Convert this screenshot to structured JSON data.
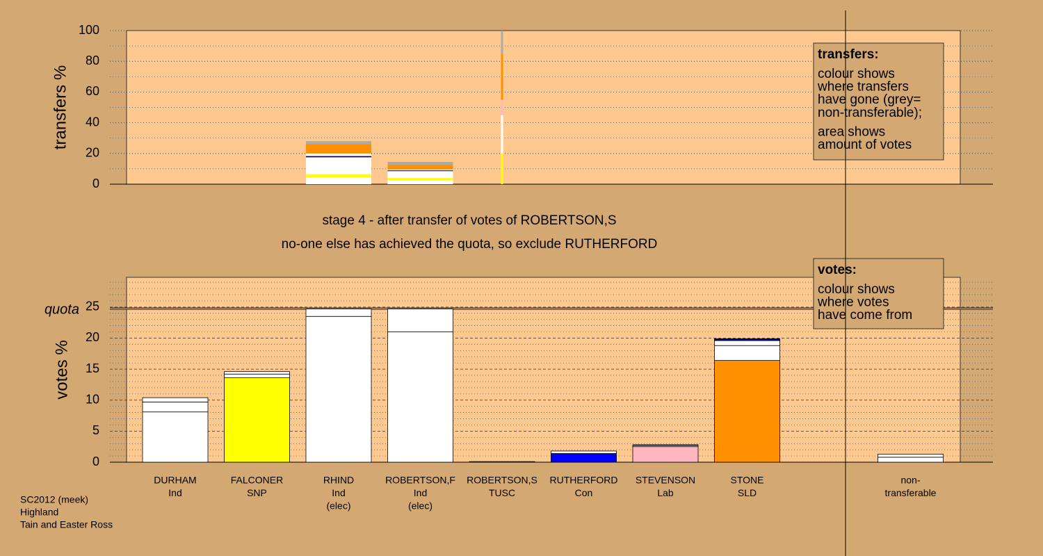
{
  "chart_data": [
    {
      "type": "bar",
      "stacked": true,
      "ylabel": "transfers %",
      "ylim": [
        0,
        100
      ],
      "yticks": [
        0,
        20,
        40,
        60,
        80,
        100
      ],
      "yminor": [
        10,
        30,
        50,
        70,
        90
      ],
      "stacks": [
        null,
        null,
        {
          "segments": [
            {
              "value": 4.5,
              "color": "#ffffff"
            },
            {
              "value": 2,
              "color": "#ffff00"
            },
            {
              "value": 11,
              "color": "#ffffff"
            },
            {
              "value": 0.8,
              "color": "#000080"
            },
            {
              "value": 1.7,
              "color": "#ffffff"
            },
            {
              "value": 6,
              "color": "#ff9000"
            },
            {
              "value": 2,
              "color": "#aaaaaa"
            }
          ]
        },
        {
          "segments": [
            {
              "value": 2.5,
              "color": "#ffffff"
            },
            {
              "value": 1.5,
              "color": "#ffff00"
            },
            {
              "value": 4.5,
              "color": "#ffffff"
            },
            {
              "value": 0.5,
              "color": "#000080"
            },
            {
              "value": 0.5,
              "color": "#ffffff"
            },
            {
              "value": 3,
              "color": "#ff9000"
            },
            {
              "value": 2,
              "color": "#aaaaaa"
            }
          ]
        },
        {
          "segments": [
            {
              "value": 20,
              "color": "#ffff00"
            },
            {
              "value": 25,
              "color": "#ffffff"
            },
            {
              "value": 10,
              "color": "#ffb6c1"
            },
            {
              "value": 30,
              "color": "#ff9000"
            },
            {
              "value": 15,
              "color": "#aaaaaa"
            }
          ]
        },
        null,
        null,
        null,
        null,
        null
      ],
      "note": {
        "title": "transfers:",
        "lines": [
          "colour shows",
          "where transfers",
          "have gone (grey=",
          "non-transferable);",
          "area shows",
          "amount of votes"
        ]
      }
    },
    {
      "type": "bar",
      "stacked": true,
      "ylabel": "votes %",
      "ylim": [
        0,
        29.8
      ],
      "yticks": [
        0,
        5,
        10,
        15,
        20,
        25
      ],
      "yminor": [
        1,
        2,
        3,
        4,
        6,
        7,
        8,
        9,
        11,
        12,
        13,
        14,
        16,
        17,
        18,
        19,
        21,
        22,
        23,
        24,
        26,
        27,
        28,
        29
      ],
      "quota": {
        "label": "quota",
        "value": 24.75
      },
      "categories": [
        [
          "DURHAM",
          "Ind"
        ],
        [
          "FALCONER",
          "SNP"
        ],
        [
          "RHIND",
          "Ind",
          "(elec)"
        ],
        [
          "ROBERTSON,F",
          "Ind",
          "(elec)"
        ],
        [
          "ROBERTSON,S",
          "TUSC"
        ],
        [
          "RUTHERFORD",
          "Con"
        ],
        [
          "STEVENSON",
          "Lab"
        ],
        [
          "STONE",
          "SLD"
        ],
        null,
        [
          "non-",
          "transferable"
        ]
      ],
      "stacks": [
        {
          "segments": [
            {
              "value": 8.1,
              "color": "#ffffff"
            },
            {
              "value": 1.6,
              "color": "#ffffff"
            },
            {
              "value": 0.7,
              "color": "#ffffff"
            }
          ]
        },
        {
          "segments": [
            {
              "value": 13.6,
              "color": "#ffff00"
            },
            {
              "value": 0.6,
              "color": "#ffffff"
            },
            {
              "value": 0.4,
              "color": "#ffffff"
            }
          ]
        },
        {
          "segments": [
            {
              "value": 23.5,
              "color": "#ffffff"
            },
            {
              "value": 1.2,
              "color": "#ffffff"
            }
          ]
        },
        {
          "segments": [
            {
              "value": 21.0,
              "color": "#ffffff"
            },
            {
              "value": 3.7,
              "color": "#ffffff"
            }
          ]
        },
        {
          "segments": [
            {
              "value": 0.1,
              "color": "#ffffff"
            }
          ]
        },
        {
          "segments": [
            {
              "value": 1.4,
              "color": "#0000ff"
            },
            {
              "value": 0.4,
              "color": "#ffffff"
            }
          ]
        },
        {
          "segments": [
            {
              "value": 2.5,
              "color": "#ffb6c1"
            },
            {
              "value": 0.2,
              "color": "#ffffff"
            },
            {
              "value": 0.1,
              "color": "#000080"
            }
          ]
        },
        {
          "segments": [
            {
              "value": 16.4,
              "color": "#ff9000"
            },
            {
              "value": 2.4,
              "color": "#ffffff"
            },
            {
              "value": 0.8,
              "color": "#ffffff"
            },
            {
              "value": 0.3,
              "color": "#000080"
            }
          ]
        },
        null,
        {
          "segments": [
            {
              "value": 0.8,
              "color": "#ffffff"
            },
            {
              "value": 0.5,
              "color": "#ffffff"
            }
          ]
        }
      ],
      "note": {
        "title": "votes:",
        "lines": [
          "colour shows",
          "where votes",
          "have come from"
        ]
      }
    }
  ],
  "captions": [
    "stage 4 - after transfer of votes of ROBERTSON,S",
    "no-one else has achieved the quota, so exclude RUTHERFORD"
  ],
  "footer": [
    "SC2012 (meek)",
    "Highland",
    "Tain and Easter Ross"
  ]
}
